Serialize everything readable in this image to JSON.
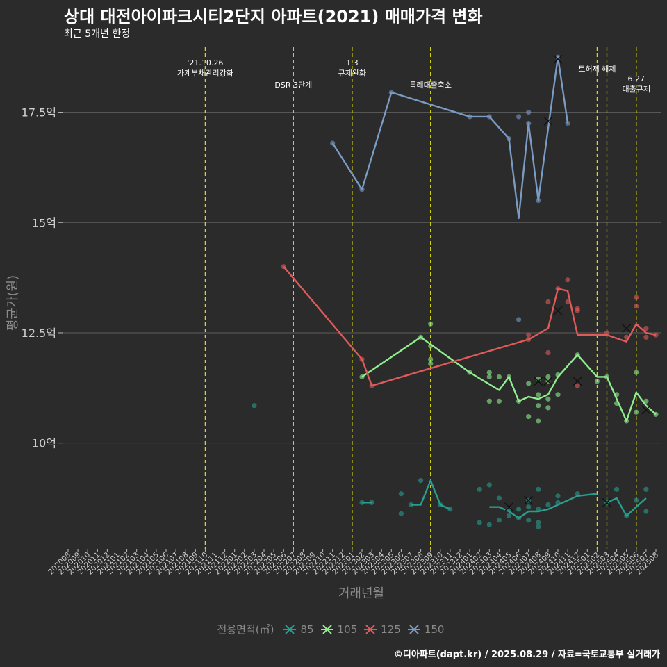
{
  "title": "상대 대전아이파크시티2단지 아파트(2021) 매매가격 변화",
  "subtitle": "최근 5개년 한정",
  "caption": "©디아파트(dapt.kr) / 2025.08.29 / 자료=국토교통부 실거래가",
  "legend_title": "전용면적(㎡)",
  "chart_data": {
    "type": "line",
    "xlabel": "거래년월",
    "ylabel": "평균가(원)",
    "x_categories": [
      "202008",
      "202009",
      "202010",
      "202011",
      "202012",
      "202101",
      "202102",
      "202103",
      "202104",
      "202105",
      "202106",
      "202107",
      "202108",
      "202109",
      "202110",
      "202111",
      "202112",
      "202201",
      "202202",
      "202203",
      "202204",
      "202205",
      "202206",
      "202207",
      "202208",
      "202209",
      "202210",
      "202211",
      "202212",
      "202301",
      "202302",
      "202303",
      "202304",
      "202305",
      "202306",
      "202307",
      "202308",
      "202309",
      "202310",
      "202311",
      "202312",
      "202401",
      "202402",
      "202403",
      "202404",
      "202405",
      "202406",
      "202407",
      "202408",
      "202409",
      "202410",
      "202411",
      "202412",
      "202501",
      "202502",
      "202503",
      "202504",
      "202505",
      "202506",
      "202507",
      "202508"
    ],
    "y_ticks": [
      10,
      12.5,
      15,
      17.5
    ],
    "y_tick_labels": [
      "10억",
      "12.5억",
      "15억",
      "17.5억"
    ],
    "ylim": [
      7.6,
      19.1
    ],
    "grid": true,
    "legend_position": "bottom",
    "series": [
      {
        "name": "85",
        "color": "#2a9d8f",
        "line": [
          [
            "202302",
            8.65
          ],
          [
            "202303",
            8.65
          ],
          null,
          [
            "202307",
            8.6
          ],
          [
            "202308",
            8.6
          ],
          [
            "202309",
            9.15
          ],
          [
            "202310",
            8.6
          ],
          [
            "202311",
            8.5
          ],
          null,
          [
            "202403",
            8.55
          ],
          [
            "202404",
            8.55
          ],
          [
            "202405",
            8.45
          ],
          [
            "202406",
            8.3
          ],
          [
            "202407",
            8.45
          ],
          [
            "202408",
            8.45
          ],
          [
            "202409",
            8.5
          ],
          [
            "202410",
            8.6
          ],
          [
            "202411",
            8.7
          ],
          [
            "202412",
            8.8
          ],
          [
            "202502",
            8.85
          ],
          null,
          [
            "202503",
            8.65
          ],
          [
            "202504",
            8.75
          ],
          [
            "202505",
            8.35
          ],
          [
            "202507",
            8.75
          ]
        ],
        "points": [
          [
            "202203",
            10.85
          ],
          [
            "202302",
            8.65
          ],
          [
            "202303",
            8.65
          ],
          [
            "202306",
            8.85
          ],
          [
            "202306",
            8.4
          ],
          [
            "202307",
            8.6
          ],
          [
            "202308",
            9.15
          ],
          [
            "202310",
            8.6
          ],
          [
            "202311",
            8.5
          ],
          [
            "202402",
            8.95
          ],
          [
            "202402",
            8.2
          ],
          [
            "202403",
            9.05
          ],
          [
            "202403",
            8.15
          ],
          [
            "202404",
            8.75
          ],
          [
            "202404",
            8.25
          ],
          [
            "202405",
            8.5
          ],
          [
            "202405",
            8.35
          ],
          [
            "202406",
            8.5
          ],
          [
            "202406",
            8.3
          ],
          [
            "202407",
            8.55
          ],
          [
            "202407",
            8.7
          ],
          [
            "202407",
            8.25
          ],
          [
            "202408",
            8.95
          ],
          [
            "202408",
            8.5
          ],
          [
            "202408",
            8.2
          ],
          [
            "202408",
            8.1
          ],
          [
            "202409",
            8.6
          ],
          [
            "202410",
            8.8
          ],
          [
            "202410",
            8.65
          ],
          [
            "202412",
            8.85
          ],
          [
            "202503",
            8.65
          ],
          [
            "202504",
            8.95
          ],
          [
            "202505",
            8.35
          ],
          [
            "202506",
            8.7
          ],
          [
            "202507",
            8.95
          ],
          [
            "202507",
            8.45
          ]
        ],
        "crosses": [
          [
            "202405",
            8.55
          ],
          [
            "202407",
            8.7
          ],
          [
            "202503",
            8.65
          ]
        ]
      },
      {
        "name": "105",
        "color": "#90ee90",
        "line": [
          [
            "202302",
            11.5
          ],
          [
            "202308",
            12.4
          ],
          [
            "202401",
            11.6
          ],
          [
            "202404",
            11.2
          ],
          [
            "202405",
            11.5
          ],
          [
            "202406",
            10.95
          ],
          [
            "202407",
            11.05
          ],
          [
            "202408",
            11.0
          ],
          [
            "202409",
            11.1
          ],
          [
            "202410",
            11.5
          ],
          [
            "202412",
            12.0
          ],
          [
            "202502",
            11.5
          ],
          [
            "202503",
            11.5
          ],
          [
            "202505",
            10.5
          ],
          [
            "202506",
            11.15
          ],
          [
            "202507",
            10.85
          ],
          [
            "202508",
            10.65
          ]
        ],
        "points": [
          [
            "202302",
            11.5
          ],
          [
            "202308",
            12.4
          ],
          [
            "202309",
            12.7
          ],
          [
            "202309",
            12.2
          ],
          [
            "202309",
            11.9
          ],
          [
            "202309",
            11.8
          ],
          [
            "202401",
            11.6
          ],
          [
            "202403",
            11.6
          ],
          [
            "202403",
            11.5
          ],
          [
            "202403",
            10.95
          ],
          [
            "202404",
            11.5
          ],
          [
            "202404",
            10.95
          ],
          [
            "202405",
            11.5
          ],
          [
            "202406",
            10.95
          ],
          [
            "202407",
            11.35
          ],
          [
            "202407",
            10.6
          ],
          [
            "202408",
            11.45
          ],
          [
            "202408",
            11.1
          ],
          [
            "202408",
            10.85
          ],
          [
            "202408",
            10.5
          ],
          [
            "202409",
            11.5
          ],
          [
            "202409",
            11.4
          ],
          [
            "202409",
            11.0
          ],
          [
            "202409",
            10.8
          ],
          [
            "202410",
            11.55
          ],
          [
            "202410",
            11.1
          ],
          [
            "202412",
            12.0
          ],
          [
            "202502",
            11.4
          ],
          [
            "202503",
            11.5
          ],
          [
            "202504",
            11.1
          ],
          [
            "202504",
            10.9
          ],
          [
            "202505",
            10.5
          ],
          [
            "202506",
            11.6
          ],
          [
            "202506",
            10.7
          ],
          [
            "202507",
            10.95
          ],
          [
            "202508",
            10.65
          ]
        ],
        "crosses": [
          [
            "202408",
            11.4
          ],
          [
            "202409",
            11.4
          ],
          [
            "202412",
            11.4
          ],
          [
            "202507",
            10.75
          ]
        ]
      },
      {
        "name": "125",
        "color": "#e05a5a",
        "line": [
          [
            "202206",
            14.0
          ],
          [
            "202302",
            11.9
          ],
          [
            "202303",
            11.3
          ],
          [
            "202407",
            12.35
          ],
          [
            "202409",
            12.6
          ],
          [
            "202410",
            13.5
          ],
          [
            "202411",
            13.45
          ],
          [
            "202412",
            12.45
          ],
          [
            "202503",
            12.45
          ],
          [
            "202505",
            12.3
          ],
          [
            "202506",
            12.7
          ],
          [
            "202507",
            12.5
          ],
          [
            "202508",
            12.45
          ]
        ],
        "points": [
          [
            "202206",
            14.0
          ],
          [
            "202302",
            11.9
          ],
          [
            "202303",
            11.3
          ],
          [
            "202407",
            12.35
          ],
          [
            "202407",
            12.45
          ],
          [
            "202409",
            13.2
          ],
          [
            "202409",
            12.05
          ],
          [
            "202410",
            13.5
          ],
          [
            "202411",
            13.7
          ],
          [
            "202411",
            13.2
          ],
          [
            "202412",
            13.05
          ],
          [
            "202412",
            13.0
          ],
          [
            "202412",
            11.3
          ],
          [
            "202503",
            12.5
          ],
          [
            "202505",
            12.4
          ],
          [
            "202506",
            13.3
          ],
          [
            "202506",
            13.1
          ],
          [
            "202507",
            12.6
          ],
          [
            "202507",
            12.4
          ],
          [
            "202508",
            12.45
          ]
        ],
        "crosses": [
          [
            "202410",
            13.0
          ],
          [
            "202505",
            12.6
          ]
        ]
      },
      {
        "name": "150",
        "color": "#7a9bc4",
        "line": [
          [
            "202211",
            16.8
          ],
          [
            "202302",
            15.75
          ],
          [
            "202305",
            17.95
          ],
          [
            "202401",
            17.4
          ],
          [
            "202403",
            17.4
          ],
          [
            "202405",
            16.9
          ],
          [
            "202406",
            15.1
          ],
          [
            "202407",
            17.25
          ],
          [
            "202408",
            15.5
          ],
          [
            "202410",
            18.75
          ],
          [
            "202411",
            17.25
          ]
        ],
        "points": [
          [
            "202211",
            16.8
          ],
          [
            "202302",
            15.75
          ],
          [
            "202305",
            17.95
          ],
          [
            "202401",
            17.4
          ],
          [
            "202403",
            17.4
          ],
          [
            "202405",
            16.9
          ],
          [
            "202406",
            17.4
          ],
          [
            "202406",
            12.8
          ],
          [
            "202407",
            17.5
          ],
          [
            "202407",
            17.25
          ],
          [
            "202408",
            15.5
          ],
          [
            "202410",
            18.75
          ],
          [
            "202411",
            17.25
          ]
        ],
        "crosses": [
          [
            "202409",
            17.3
          ],
          [
            "202410",
            18.7
          ]
        ]
      }
    ],
    "events": [
      {
        "month": "202110",
        "lines": [
          "'21.10.26",
          "가계부채관리강화"
        ]
      },
      {
        "month": "202207",
        "lines": [
          "DSR 3단계"
        ]
      },
      {
        "month": "202301",
        "lines": [
          "1.3",
          "규제완화"
        ]
      },
      {
        "month": "202309",
        "lines": [
          "특례대출축소"
        ]
      },
      {
        "month": "202502",
        "lines": [
          "토허제 해제"
        ]
      },
      {
        "month": "202503",
        "lines": []
      },
      {
        "month": "202506",
        "lines": [
          "6.27",
          "대출규제"
        ]
      }
    ]
  }
}
